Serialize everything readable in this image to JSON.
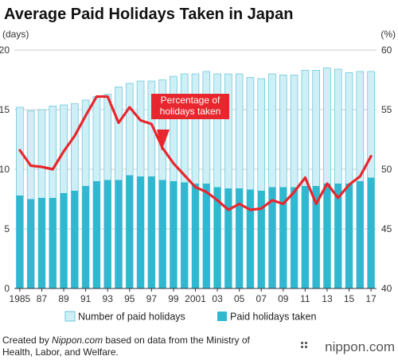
{
  "chart_data": {
    "type": "bar",
    "title": "Average Paid Holidays Taken in Japan",
    "y_left_unit": "(days)",
    "y_right_unit": "(%)",
    "ylim_left": [
      0,
      20
    ],
    "ylim_right": [
      40,
      60
    ],
    "yticks_left": [
      "0",
      "5",
      "10",
      "15",
      "20"
    ],
    "yticks_right": [
      "40",
      "45",
      "50",
      "55",
      "60"
    ],
    "categories": [
      1985,
      1986,
      1987,
      1988,
      1989,
      1990,
      1991,
      1992,
      1993,
      1994,
      1995,
      1996,
      1997,
      1998,
      1999,
      2000,
      2001,
      2002,
      2003,
      2004,
      2005,
      2006,
      2007,
      2008,
      2009,
      2010,
      2011,
      2012,
      2013,
      2014,
      2015,
      2016,
      2017
    ],
    "x_tick_labels": [
      "1985",
      "87",
      "89",
      "91",
      "93",
      "95",
      "97",
      "99",
      "2001",
      "03",
      "05",
      "07",
      "09",
      "11",
      "13",
      "15",
      "17"
    ],
    "grid": true,
    "legend_position": "bottom",
    "series": [
      {
        "name": "Number of paid holidays",
        "type": "bar",
        "axis": "left",
        "values": [
          15.2,
          14.9,
          15.0,
          15.3,
          15.4,
          15.5,
          15.8,
          16.1,
          16.3,
          16.9,
          17.2,
          17.4,
          17.4,
          17.5,
          17.8,
          18.0,
          18.0,
          18.2,
          18.0,
          18.0,
          18.0,
          17.7,
          17.6,
          18.0,
          17.9,
          17.9,
          18.3,
          18.3,
          18.5,
          18.4,
          18.1,
          18.2,
          18.2
        ]
      },
      {
        "name": "Paid holidays taken",
        "type": "bar",
        "axis": "left",
        "values": [
          7.8,
          7.5,
          7.6,
          7.6,
          8.0,
          8.2,
          8.6,
          9.0,
          9.1,
          9.1,
          9.5,
          9.4,
          9.4,
          9.1,
          9.0,
          8.9,
          8.8,
          8.8,
          8.5,
          8.4,
          8.4,
          8.3,
          8.2,
          8.5,
          8.5,
          8.5,
          8.6,
          8.6,
          8.8,
          8.8,
          8.8,
          9.0,
          9.3
        ]
      },
      {
        "name": "Percentage of holidays taken",
        "type": "line",
        "axis": "right",
        "values": [
          51.6,
          50.3,
          50.2,
          50.0,
          51.5,
          52.8,
          54.5,
          56.1,
          56.1,
          53.9,
          55.2,
          54.1,
          53.8,
          51.8,
          50.5,
          49.5,
          48.5,
          48.1,
          47.4,
          46.6,
          47.1,
          46.6,
          46.7,
          47.4,
          47.1,
          48.1,
          49.3,
          47.1,
          48.8,
          47.6,
          48.7,
          49.4,
          51.1
        ]
      }
    ],
    "annotation": "Percentage of holidays taken"
  },
  "credit": {
    "line1_prefix": "Created by ",
    "line1_source": "Nippon.com",
    "line1_suffix": " based on data from the Ministry of",
    "line2": "Health, Labor, and Welfare."
  },
  "brand": "nippon.com",
  "colors": {
    "bar_total_fill": "#cfeff6",
    "bar_total_stroke": "#6cc9dc",
    "bar_taken": "#2fb8d0",
    "line": "#e8262d",
    "grid": "#bbbbbb",
    "axis": "#333333"
  }
}
